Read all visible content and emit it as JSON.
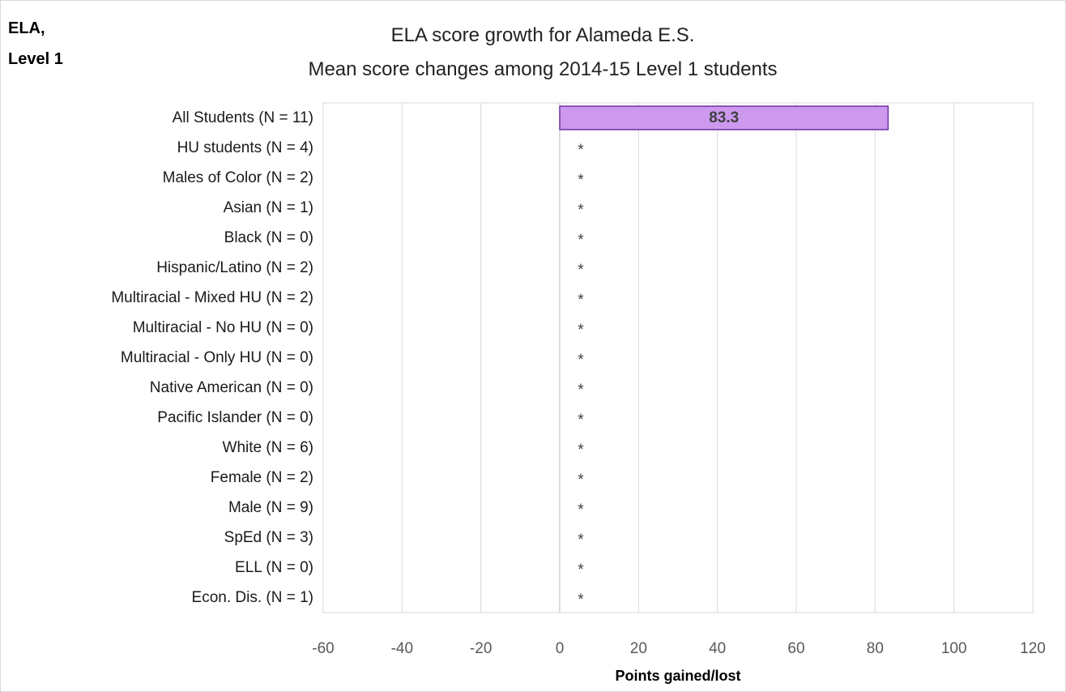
{
  "corner_label": "ELA,\nLevel 1",
  "chart_data": {
    "type": "bar",
    "orientation": "horizontal",
    "title": "ELA score growth for Alameda E.S.",
    "subtitle": "Mean score changes among 2014-15 Level 1 students",
    "xlabel": "Points gained/lost",
    "ylabel": "",
    "xlim": [
      -60,
      120
    ],
    "x_ticks": [
      -60,
      -40,
      -20,
      0,
      20,
      40,
      60,
      80,
      100,
      120
    ],
    "grid": true,
    "bar_color": "#cc99ee",
    "bar_border_color": "#7030a0",
    "categories": [
      "All Students (N = 11)",
      "HU students (N = 4)",
      "Males of Color (N = 2)",
      "Asian (N = 1)",
      "Black (N = 0)",
      "Hispanic/Latino (N = 2)",
      "Multiracial - Mixed HU (N = 2)",
      "Multiracial - No HU (N = 0)",
      "Multiracial - Only HU (N = 0)",
      "Native American (N = 0)",
      "Pacific Islander (N = 0)",
      "White (N = 6)",
      "Female (N = 2)",
      "Male (N = 9)",
      "SpEd (N = 3)",
      "ELL (N = 0)",
      "Econ. Dis. (N = 1)"
    ],
    "values": [
      83.3,
      null,
      null,
      null,
      null,
      null,
      null,
      null,
      null,
      null,
      null,
      null,
      null,
      null,
      null,
      null,
      null
    ],
    "data_labels": [
      "83.3",
      "*",
      "*",
      "*",
      "*",
      "*",
      "*",
      "*",
      "*",
      "*",
      "*",
      "*",
      "*",
      "*",
      "*",
      "*",
      "*"
    ]
  }
}
